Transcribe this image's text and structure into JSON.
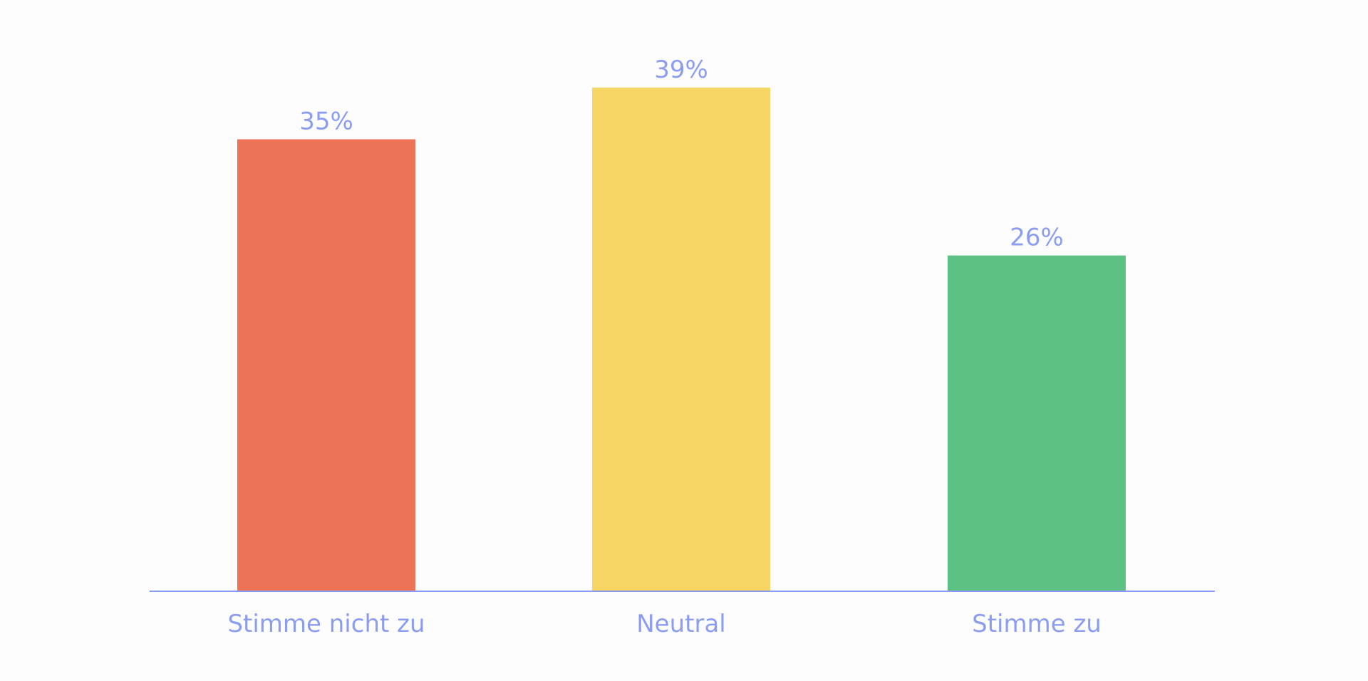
{
  "chart_data": {
    "type": "bar",
    "title": "",
    "xlabel": "",
    "ylabel": "",
    "categories": [
      "Stimme nicht zu",
      "Neutral",
      "Stimme zu"
    ],
    "values": [
      35,
      39,
      26
    ],
    "value_labels": [
      "35%",
      "39%",
      "26%"
    ],
    "unit": "%",
    "ylim": [
      0,
      39
    ],
    "grid": false,
    "legend": "none",
    "colors": [
      "#ec7356",
      "#f7d565",
      "#5cc183"
    ],
    "axis_color": "#8b9df2",
    "label_color": "#8b9df2"
  }
}
